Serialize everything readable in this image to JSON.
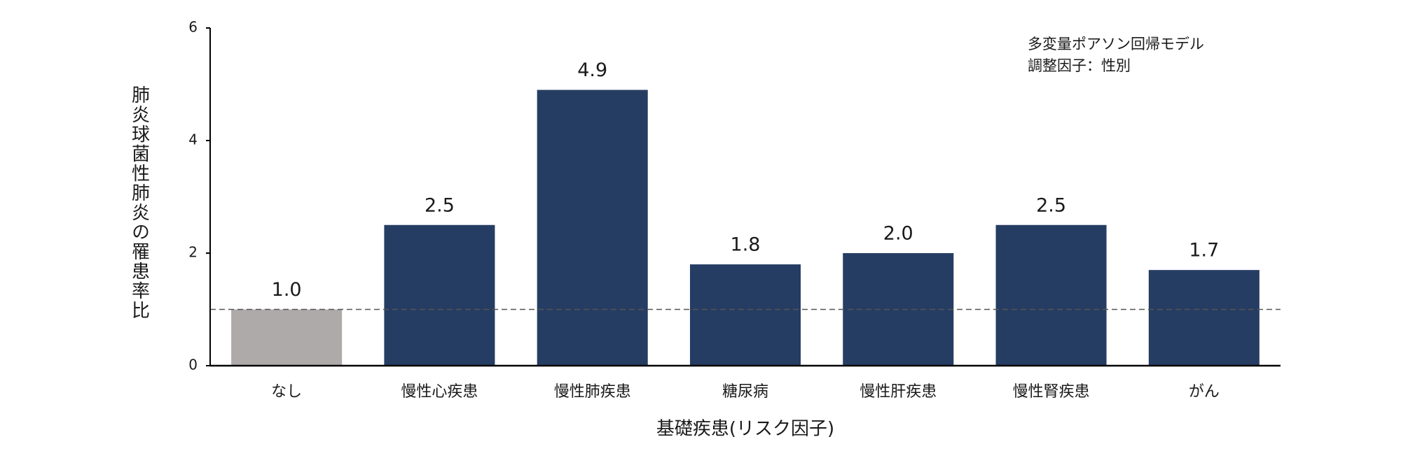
{
  "chart_data": {
    "type": "bar",
    "xlabel": "基礎疾患(リスク因子)",
    "ylabel": "肺炎球菌性肺炎の罹患率比",
    "annotations": [
      "多変量ポアソン回帰モデル",
      "調整因子：性別"
    ],
    "categories": [
      "なし",
      "慢性心疾患",
      "慢性肺疾患",
      "糖尿病",
      "慢性肝疾患",
      "慢性腎疾患",
      "がん"
    ],
    "values": [
      1.0,
      2.5,
      4.9,
      1.8,
      2.0,
      2.5,
      1.7
    ],
    "value_labels": [
      "1.0",
      "2.5",
      "4.9",
      "1.8",
      "2.0",
      "2.5",
      "1.7"
    ],
    "colors": [
      "#aeaaaa",
      "#263d63",
      "#263d63",
      "#263d63",
      "#263d63",
      "#263d63",
      "#263d63"
    ],
    "ylim": [
      0,
      6
    ],
    "yticks": [
      0,
      2,
      4,
      6
    ],
    "reference_line": 1
  }
}
